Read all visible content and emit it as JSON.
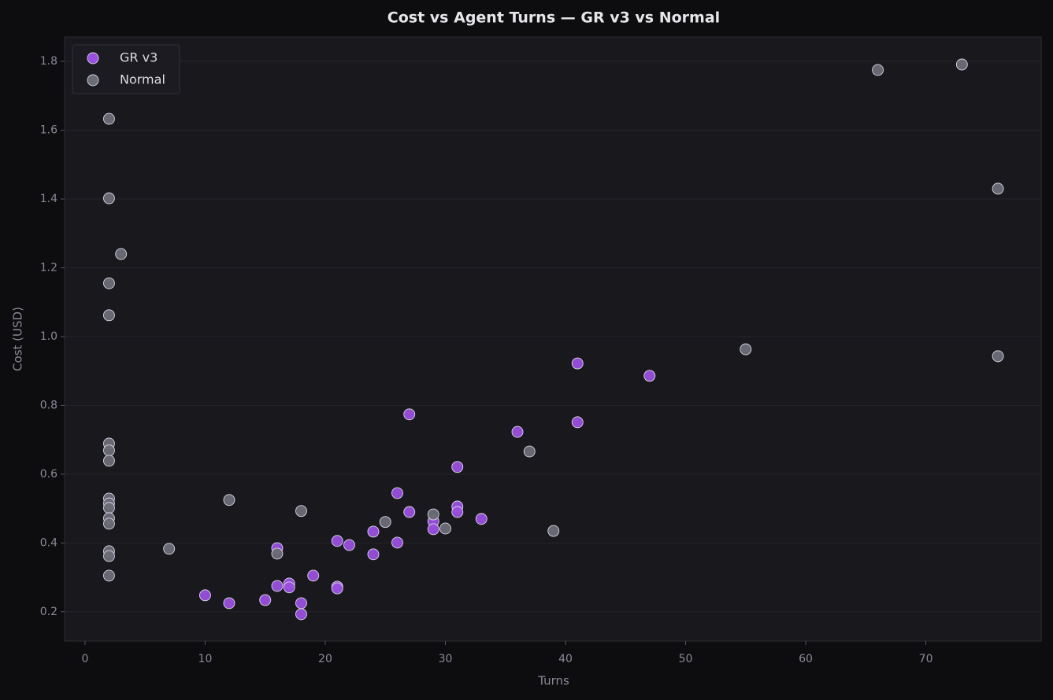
{
  "chart_data": {
    "type": "scatter",
    "title": "Cost vs Agent Turns — GR v3 vs Normal",
    "x_label": "Turns",
    "y_label": "Cost (USD)",
    "xlim": [
      -1.7,
      79.6
    ],
    "ylim": [
      0.115,
      1.871
    ],
    "xticks": [
      0,
      10,
      20,
      30,
      40,
      50,
      60,
      70
    ],
    "yticks": [
      0.2,
      0.4,
      0.6,
      0.8,
      {
        "value": 1,
        "label": "1.0"
      },
      1.2,
      1.4,
      1.6,
      1.8
    ],
    "grid": "y",
    "legend": "upper left",
    "series": [
      {
        "name": "GR v3",
        "color": "#9a4fe0",
        "x": [
          41,
          47,
          27,
          36,
          41,
          31,
          26,
          27,
          31,
          31,
          33,
          29,
          29,
          24,
          26,
          21,
          22,
          24,
          16,
          19,
          16,
          17,
          17,
          21,
          21,
          15,
          10,
          12,
          18,
          18
        ],
        "values": [
          0.922,
          0.886,
          0.774,
          0.723,
          0.751,
          0.621,
          0.545,
          0.49,
          0.506,
          0.49,
          0.47,
          0.463,
          0.44,
          0.433,
          0.401,
          0.406,
          0.394,
          0.367,
          0.385,
          0.305,
          0.275,
          0.282,
          0.271,
          0.273,
          0.268,
          0.234,
          0.248,
          0.225,
          0.225,
          0.193
        ]
      },
      {
        "name": "Normal",
        "color": "#6b6d76",
        "x": [
          2,
          2,
          3,
          2,
          2,
          2,
          2,
          2,
          2,
          2,
          2,
          2,
          2,
          2,
          2,
          2,
          7,
          12,
          16,
          18,
          25,
          29,
          30,
          37,
          39,
          55,
          66,
          73,
          76,
          76
        ],
        "values": [
          1.633,
          1.402,
          1.24,
          1.155,
          1.062,
          0.689,
          0.669,
          0.639,
          0.529,
          0.515,
          0.502,
          0.472,
          0.456,
          0.376,
          0.362,
          0.305,
          0.383,
          0.525,
          0.369,
          0.493,
          0.461,
          0.483,
          0.442,
          0.666,
          0.435,
          0.963,
          1.775,
          1.791,
          1.43,
          0.943
        ]
      }
    ]
  }
}
